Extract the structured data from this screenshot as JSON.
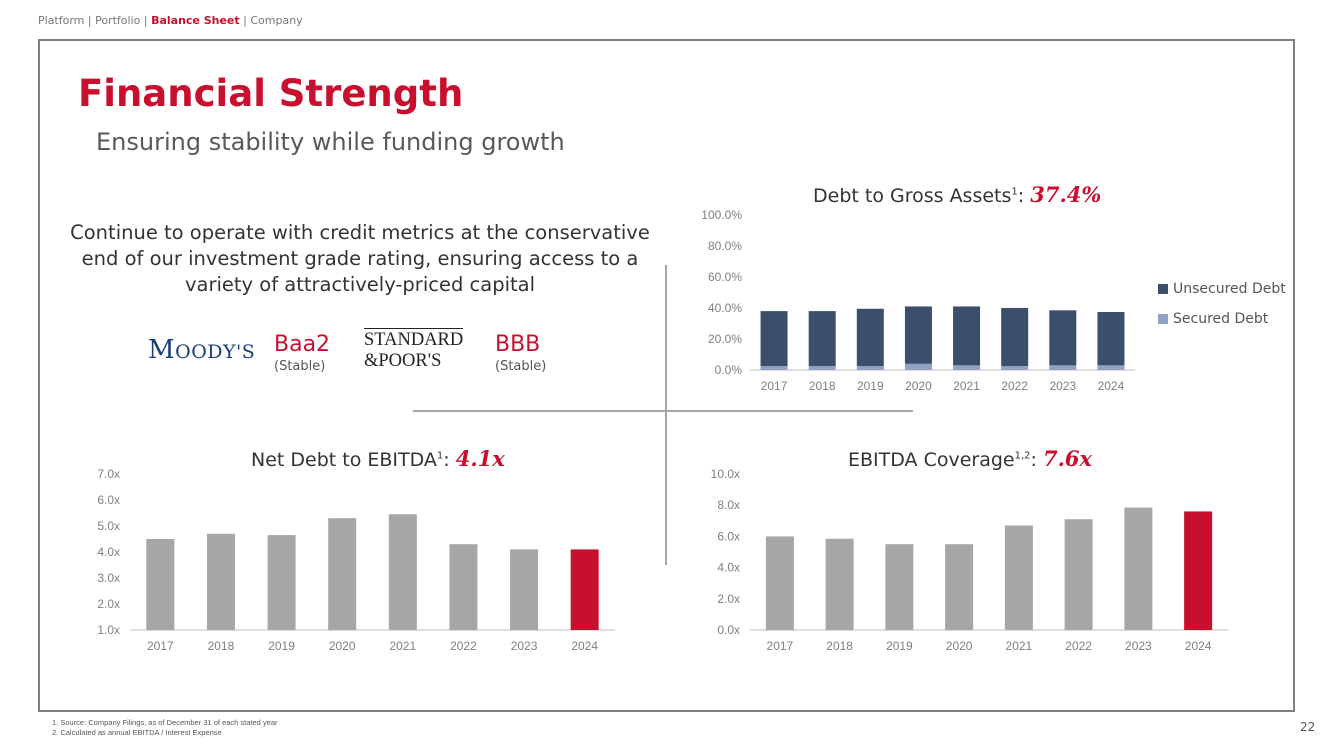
{
  "breadcrumb": {
    "items": [
      "Platform",
      "Portfolio",
      "Balance Sheet",
      "Company"
    ],
    "separator": " | ",
    "active_index": 2
  },
  "title": "Financial Strength",
  "subtitle": "Ensuring stability while funding growth",
  "statement": "Continue to operate with credit metrics at the conservative end of our investment grade rating, ensuring access to a variety of attractively-priced capital",
  "ratings": {
    "moodys": {
      "logo": "MOODY'S",
      "logo_first": "M",
      "logo_rest": "OODY'S",
      "rating": "Baa2",
      "outlook": "(Stable)"
    },
    "sp": {
      "logo_line1": "STANDARD",
      "logo_line2": "&POOR'S",
      "rating": "BBB",
      "outlook": "(Stable)"
    }
  },
  "colors": {
    "accent": "#c8102e",
    "unsecured": "#3b4e6b",
    "secured": "#8fa2c4",
    "bar_gray": "#a6a6a6",
    "highlight_bar": "#c8102e"
  },
  "chart_data": [
    {
      "id": "debt-to-gross-assets",
      "type": "bar",
      "stacked": true,
      "title": "Debt to Gross Assets",
      "title_sup": "1",
      "title_value": "37.4%",
      "categories": [
        "2017",
        "2018",
        "2019",
        "2020",
        "2021",
        "2022",
        "2023",
        "2024"
      ],
      "series": [
        {
          "name": "Secured Debt",
          "values": [
            2.5,
            2.5,
            2.5,
            4.0,
            3.0,
            2.5,
            3.0,
            3.0
          ]
        },
        {
          "name": "Unsecured Debt",
          "values": [
            35.5,
            35.5,
            37.0,
            37.0,
            38.0,
            37.5,
            35.5,
            34.4
          ]
        }
      ],
      "legend": [
        "Unsecured Debt",
        "Secured Debt"
      ],
      "yticks": [
        "0.0%",
        "20.0%",
        "40.0%",
        "60.0%",
        "80.0%",
        "100.0%"
      ],
      "ylim": [
        0,
        100
      ]
    },
    {
      "id": "net-debt-to-ebitda",
      "type": "bar",
      "title": "Net Debt to EBITDA",
      "title_sup": "1",
      "title_value": "4.1x",
      "categories": [
        "2017",
        "2018",
        "2019",
        "2020",
        "2021",
        "2022",
        "2023",
        "2024"
      ],
      "values": [
        4.5,
        4.7,
        4.65,
        5.3,
        5.45,
        4.3,
        4.1,
        4.1
      ],
      "highlight_index": 7,
      "yticks": [
        "1.0x",
        "2.0x",
        "3.0x",
        "4.0x",
        "5.0x",
        "6.0x",
        "7.0x"
      ],
      "ylim": [
        1,
        7
      ]
    },
    {
      "id": "ebitda-coverage",
      "type": "bar",
      "title": "EBITDA Coverage",
      "title_sup": "1,2",
      "title_value": "7.6x",
      "categories": [
        "2017",
        "2018",
        "2019",
        "2020",
        "2021",
        "2022",
        "2023",
        "2024"
      ],
      "values": [
        6.0,
        5.85,
        5.5,
        5.5,
        6.7,
        7.1,
        7.85,
        7.6
      ],
      "highlight_index": 7,
      "yticks": [
        "0.0x",
        "2.0x",
        "4.0x",
        "6.0x",
        "8.0x",
        "10.0x"
      ],
      "ylim": [
        0,
        10
      ]
    }
  ],
  "footnotes": [
    "1.   Source: Company Filings, as of December 31 of each stated year",
    "2.   Calculated as annual EBITDA / Interest Expense"
  ],
  "page_number": "22"
}
